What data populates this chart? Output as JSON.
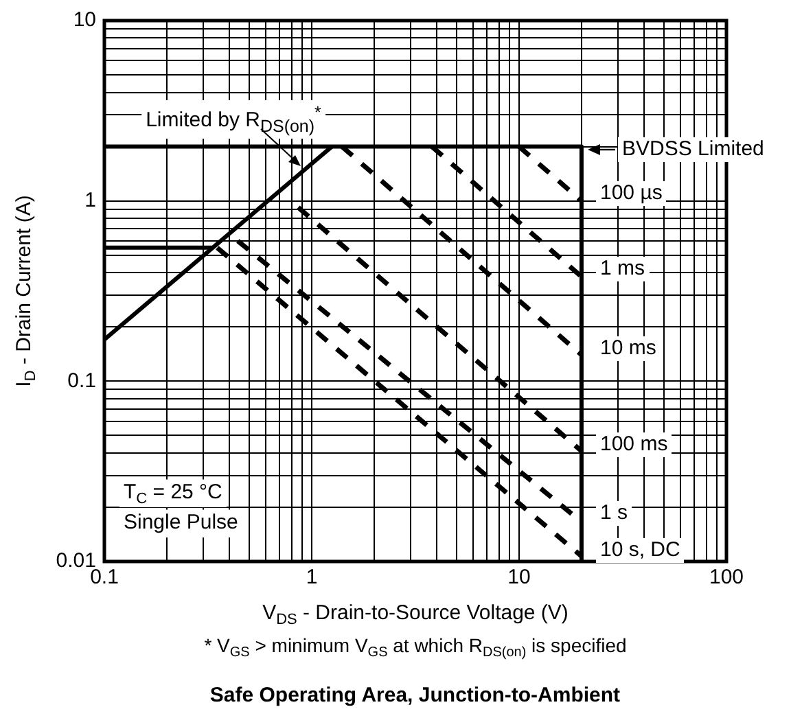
{
  "chart_data": {
    "type": "line",
    "title": "Safe Operating Area, Junction-to-Ambient",
    "xlabel": "V$_{DS}$ - Drain-to-Source Voltage (V)",
    "ylabel": "I$_{D}$ - Drain Current (A)",
    "log": "xy",
    "grid": true,
    "legend": false,
    "marker": "none",
    "xlim": [
      0.1,
      100
    ],
    "ylim": [
      0.01,
      10
    ],
    "xticks": [
      0.1,
      {
        "value": 0.2,
        "label": null
      },
      {
        "value": 0.3,
        "label": null
      },
      {
        "value": 0.4,
        "label": null
      },
      {
        "value": 0.5,
        "label": null
      },
      {
        "value": 0.6,
        "label": null
      },
      {
        "value": 0.7,
        "label": null
      },
      {
        "value": 0.8,
        "label": null
      },
      {
        "value": 0.9,
        "label": null
      },
      1,
      {
        "value": 2,
        "label": null
      },
      {
        "value": 3,
        "label": null
      },
      {
        "value": 4,
        "label": null
      },
      {
        "value": 5,
        "label": null
      },
      {
        "value": 6,
        "label": null
      },
      {
        "value": 7,
        "label": null
      },
      {
        "value": 8,
        "label": null
      },
      {
        "value": 9,
        "label": null
      },
      10,
      {
        "value": 20,
        "label": null
      },
      {
        "value": 30,
        "label": null
      },
      {
        "value": 40,
        "label": null
      },
      {
        "value": 50,
        "label": null
      },
      {
        "value": 60,
        "label": null
      },
      {
        "value": 70,
        "label": null
      },
      {
        "value": 80,
        "label": null
      },
      {
        "value": 90,
        "label": null
      },
      100
    ],
    "yticks": [
      0.01,
      {
        "value": 0.02,
        "label": null
      },
      {
        "value": 0.03,
        "label": null
      },
      {
        "value": 0.04,
        "label": null
      },
      {
        "value": 0.05,
        "label": null
      },
      {
        "value": 0.06,
        "label": null
      },
      {
        "value": 0.07,
        "label": null
      },
      {
        "value": 0.08,
        "label": null
      },
      {
        "value": 0.09,
        "label": null
      },
      0.1,
      {
        "value": 0.2,
        "label": null
      },
      {
        "value": 0.3,
        "label": null
      },
      {
        "value": 0.4,
        "label": null
      },
      {
        "value": 0.5,
        "label": null
      },
      {
        "value": 0.6,
        "label": null
      },
      {
        "value": 0.7,
        "label": null
      },
      {
        "value": 0.8,
        "label": null
      },
      {
        "value": 0.9,
        "label": null
      },
      1,
      {
        "value": 2,
        "label": null
      },
      {
        "value": 3,
        "label": null
      },
      {
        "value": 4,
        "label": null
      },
      {
        "value": 5,
        "label": null
      },
      {
        "value": 6,
        "label": null
      },
      {
        "value": 7,
        "label": null
      },
      {
        "value": 8,
        "label": null
      },
      {
        "value": 9,
        "label": null
      },
      10
    ],
    "series": [
      {
        "type": "line",
        "color": "#000000",
        "line_style": "solid",
        "x": [
          0.1,
          20,
          20
        ],
        "values": [
          2,
          2,
          0.01
        ]
      },
      {
        "type": "line",
        "color": "#000000",
        "line_style": "solid",
        "x": [
          0.1,
          1.25
        ],
        "values": [
          0.17,
          2
        ]
      },
      {
        "type": "line",
        "color": "#000000",
        "line_style": "solid",
        "x": [
          0.1,
          0.33
        ],
        "values": [
          0.55,
          0.55
        ]
      },
      {
        "type": "line",
        "color": "#000000",
        "line_style": "dashed",
        "x": [
          10,
          20
        ],
        "values": [
          2,
          1
        ]
      },
      {
        "type": "line",
        "color": "#000000",
        "line_style": "dashed",
        "x": [
          3.8,
          20
        ],
        "values": [
          2,
          0.38
        ]
      },
      {
        "type": "line",
        "color": "#000000",
        "line_style": "dashed",
        "x": [
          1.4,
          20
        ],
        "values": [
          2,
          0.14
        ]
      },
      {
        "type": "line",
        "color": "#000000",
        "line_style": "dashed",
        "x": [
          0.86,
          20
        ],
        "values": [
          0.92,
          0.041
        ]
      },
      {
        "type": "line",
        "color": "#000000",
        "line_style": "dashed",
        "x": [
          0.44,
          20
        ],
        "values": [
          0.6,
          0.0166
        ]
      },
      {
        "type": "line",
        "color": "#000000",
        "line_style": "dashed",
        "x": [
          0.35,
          20
        ],
        "values": [
          0.55,
          0.0107
        ]
      }
    ],
    "annotations": [
      "Limited by R$_{DS(on)}$$^{*}$",
      "BVDSS Limited",
      "100 µs",
      "1 ms",
      "10 ms",
      "100 ms",
      "1 s",
      "10 s, DC",
      "T$_{C}$ = 25 °C",
      "Single Pulse",
      "* V$_{GS}$ > minimum V$_{GS}$ at which R$_{DS(on)}$ is specified"
    ]
  }
}
